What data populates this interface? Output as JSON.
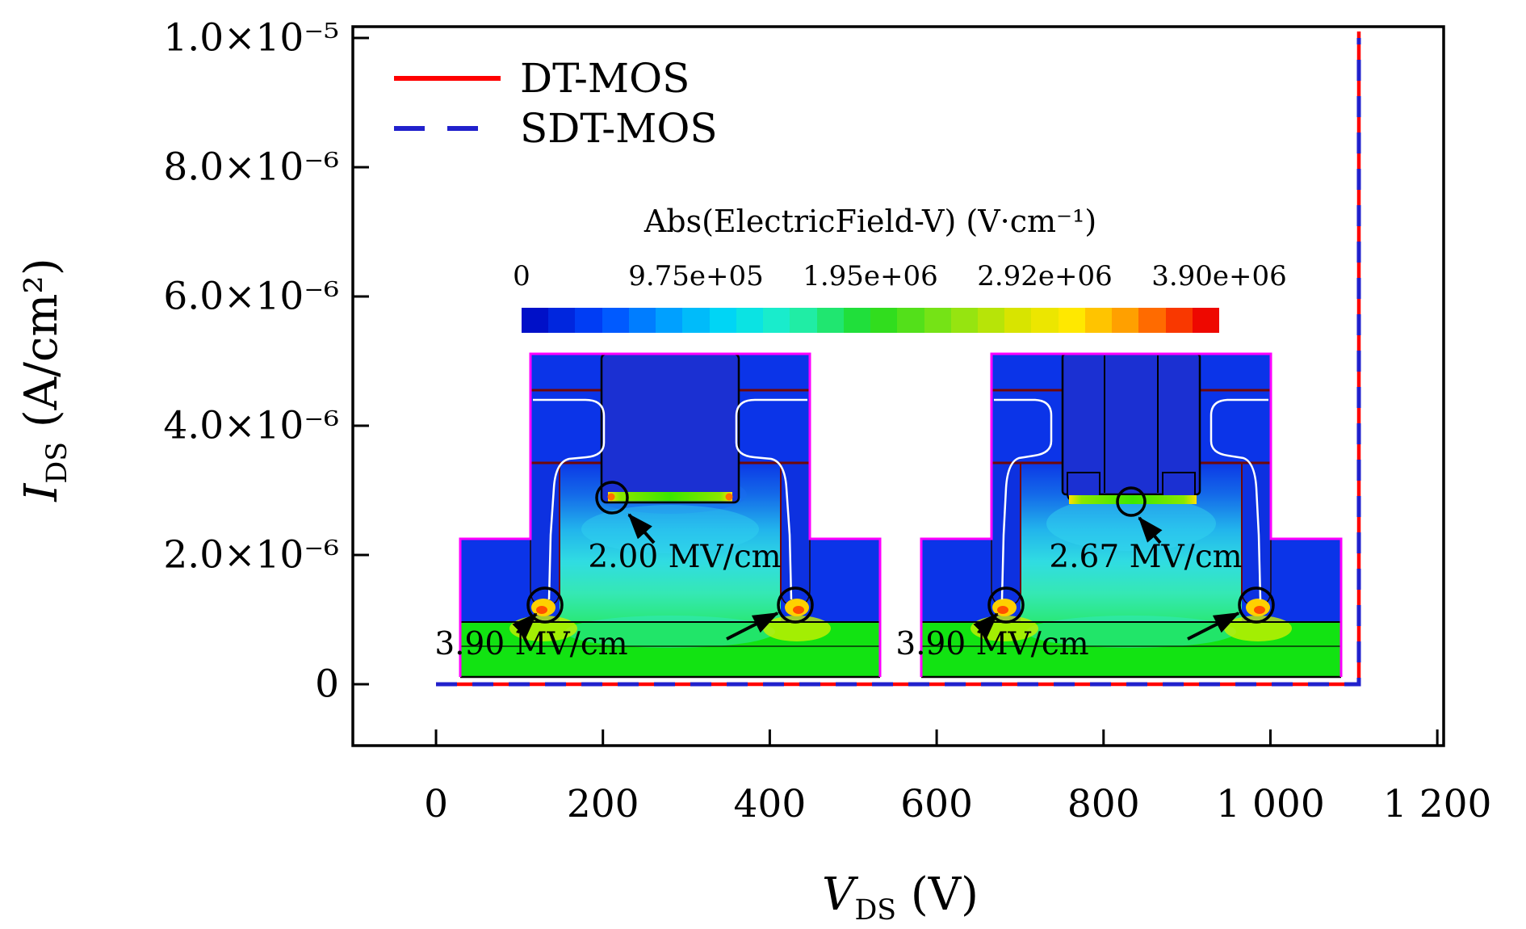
{
  "chart_data": {
    "type": "line",
    "title": "",
    "xlabel": "V_DS (V)",
    "ylabel": "I_DS (A/cm2)",
    "xlim": [
      -99.7,
      1207.6
    ],
    "ylim": [
      -9.5e-07,
      1.0175e-05
    ],
    "grid": false,
    "legend_position": "top-left",
    "x_ticks": [
      {
        "v": 0,
        "label": "0"
      },
      {
        "v": 200,
        "label": "200"
      },
      {
        "v": 400,
        "label": "400"
      },
      {
        "v": 600,
        "label": "600"
      },
      {
        "v": 800,
        "label": "800"
      },
      {
        "v": 1000,
        "label": "1 000"
      },
      {
        "v": 1200,
        "label": "1 200"
      }
    ],
    "y_ticks": [
      {
        "v": 0,
        "label": "0"
      },
      {
        "v": 2e-06,
        "label": "2.0×10⁻⁶"
      },
      {
        "v": 4e-06,
        "label": "4.0×10⁻⁶"
      },
      {
        "v": 6e-06,
        "label": "6.0×10⁻⁶"
      },
      {
        "v": 8e-06,
        "label": "8.0×10⁻⁶"
      },
      {
        "v": 1e-05,
        "label": "1.0×10⁻⁵"
      }
    ],
    "breakdown_voltage_V": 1106,
    "series": [
      {
        "name": "DT-MOS",
        "color": "#ff0000",
        "style": "solid",
        "points": [
          [
            0,
            0
          ],
          [
            1106,
            0
          ],
          [
            1106,
            1.01e-05
          ]
        ]
      },
      {
        "name": "SDT-MOS",
        "color": "#2121cc",
        "style": "dashed",
        "points": [
          [
            0,
            0
          ],
          [
            1106,
            0
          ],
          [
            1106,
            1e-05
          ]
        ]
      }
    ],
    "colorbar": {
      "title": "Abs(ElectricField-V) (V·cm⁻¹)",
      "min": 0,
      "max": 3900000,
      "ticks": [
        "0",
        "9.75e+05",
        "1.95e+06",
        "2.92e+06",
        "3.90e+06"
      ]
    }
  },
  "axes": {
    "x": {
      "symbol": "V",
      "sub": "DS",
      "unit": " (V)"
    },
    "y": {
      "symbol": "I",
      "sub": "DS",
      "unit": " (A/cm²)"
    }
  },
  "insets": {
    "left": {
      "device": "DT-MOS",
      "trench_bottom_label": "2.00 MV/cm",
      "corner_label": "3.90 MV/cm"
    },
    "right": {
      "device": "SDT-MOS",
      "trench_bottom_label": "2.67 MV/cm",
      "corner_label": "3.90 MV/cm"
    }
  }
}
